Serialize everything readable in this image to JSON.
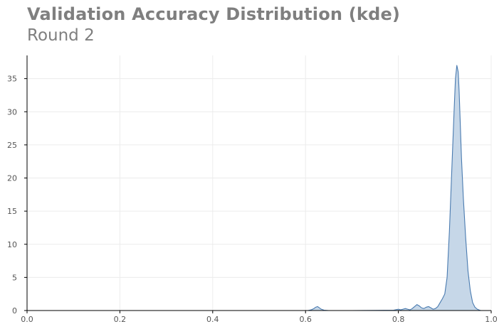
{
  "chart_data": {
    "type": "area",
    "title": "Validation Accuracy Distribution (kde)",
    "subtitle": "Round 2",
    "xlabel": "",
    "ylabel": "",
    "xlim": [
      0.0,
      1.0
    ],
    "ylim": [
      0,
      38.5
    ],
    "xticks": [
      "0.0",
      "0.2",
      "0.4",
      "0.6",
      "0.8",
      "1.0"
    ],
    "xtick_values": [
      0.0,
      0.2,
      0.4,
      0.6,
      0.8,
      1.0
    ],
    "yticks": [
      "0",
      "5",
      "10",
      "15",
      "20",
      "25",
      "30",
      "35"
    ],
    "ytick_values": [
      0,
      5,
      10,
      15,
      20,
      25,
      30,
      35
    ],
    "grid": true,
    "legend": "none",
    "series": [
      {
        "x": [
          0.605,
          0.612,
          0.618,
          0.622,
          0.626,
          0.63,
          0.634,
          0.64,
          0.65,
          0.7,
          0.75,
          0.79,
          0.8,
          0.805,
          0.81,
          0.815,
          0.82,
          0.825,
          0.83,
          0.835,
          0.84,
          0.845,
          0.85,
          0.855,
          0.86,
          0.865,
          0.87,
          0.875,
          0.88,
          0.885,
          0.89,
          0.895,
          0.9,
          0.905,
          0.91,
          0.915,
          0.92,
          0.923,
          0.926,
          0.929,
          0.931,
          0.933,
          0.936,
          0.94,
          0.945,
          0.95,
          0.955,
          0.96,
          0.965,
          0.97,
          0.975,
          0.978
        ],
        "y": [
          0.0,
          0.1,
          0.3,
          0.5,
          0.6,
          0.4,
          0.2,
          0.05,
          0.0,
          0.0,
          0.02,
          0.05,
          0.2,
          0.1,
          0.2,
          0.3,
          0.2,
          0.1,
          0.3,
          0.6,
          0.9,
          0.7,
          0.4,
          0.3,
          0.5,
          0.6,
          0.4,
          0.2,
          0.3,
          0.6,
          1.2,
          1.8,
          2.5,
          5.0,
          12.0,
          21.0,
          30.0,
          35.0,
          37.0,
          36.0,
          33.0,
          29.0,
          23.0,
          17.0,
          11.0,
          6.0,
          3.0,
          1.2,
          0.5,
          0.2,
          0.05,
          0.0
        ]
      }
    ],
    "fill_color": "#c6d7e8",
    "line_color": "#4a7bb0",
    "grid_color": "#ececec",
    "axis_color": "#000000"
  }
}
